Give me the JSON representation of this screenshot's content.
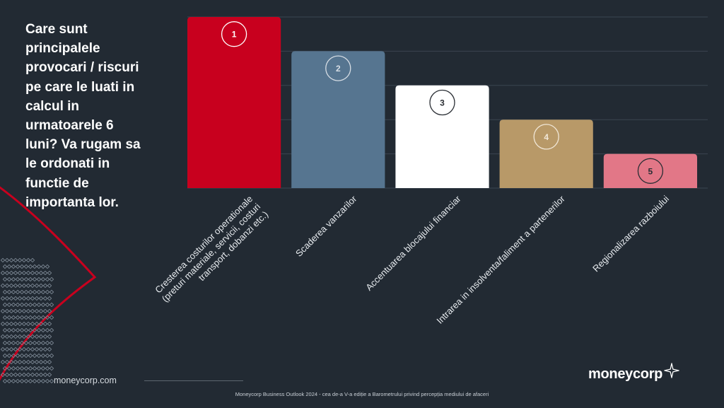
{
  "question": "Care sunt principalele provocari / riscuri pe care le luati in calcul in urmatoarele 6 luni? Va rugam sa le ordonati in functie de importanta lor.",
  "footer": {
    "website": "moneycorp.com",
    "caption": "Moneycorp Business Outlook 2024 - cea de-a V-a ediție a Barometrului privind percepția mediului de afaceri"
  },
  "brand": {
    "name": "moneycorp",
    "logo_icon": "sparkle-star-icon"
  },
  "colors": {
    "background": "#222a33",
    "accent_red": "#c8001e",
    "grid": "#3b4550"
  },
  "chart_data": {
    "type": "bar",
    "categories": [
      "Cresterea costurilor operationale (preturi materiale, servicii, costuri transport, dobanzi etc.)",
      "Scaderea vanzarilor",
      "Accentuarea blocajului financiar",
      "Intrarea in insolventa/faliment a partenerilor",
      "Regionalizarea razboiului"
    ],
    "category_lines": [
      [
        "Cresterea costurilor operationale",
        "(preturi materiale, servicii, costuri",
        "transport, dobanzi etc.)"
      ],
      [
        "Scaderea vanzarilor"
      ],
      [
        "Accentuarea blocajului financiar"
      ],
      [
        "Intrarea in insolventa/faliment a partenerilor"
      ],
      [
        "Regionalizarea razboiului"
      ]
    ],
    "values": [
      5,
      4,
      3,
      2,
      1
    ],
    "ranks": [
      "1",
      "2",
      "3",
      "4",
      "5"
    ],
    "bar_colors": [
      "#c8001e",
      "#567590",
      "#ffffff",
      "#b89968",
      "#e27787"
    ],
    "badge_colors": [
      "#ffffff",
      "#d7dee5",
      "#2a2e34",
      "#f1e7d7",
      "#2a2e34"
    ],
    "ylim": [
      0,
      5
    ],
    "grid": true,
    "y_ticks_visible": false,
    "legend": "none"
  }
}
